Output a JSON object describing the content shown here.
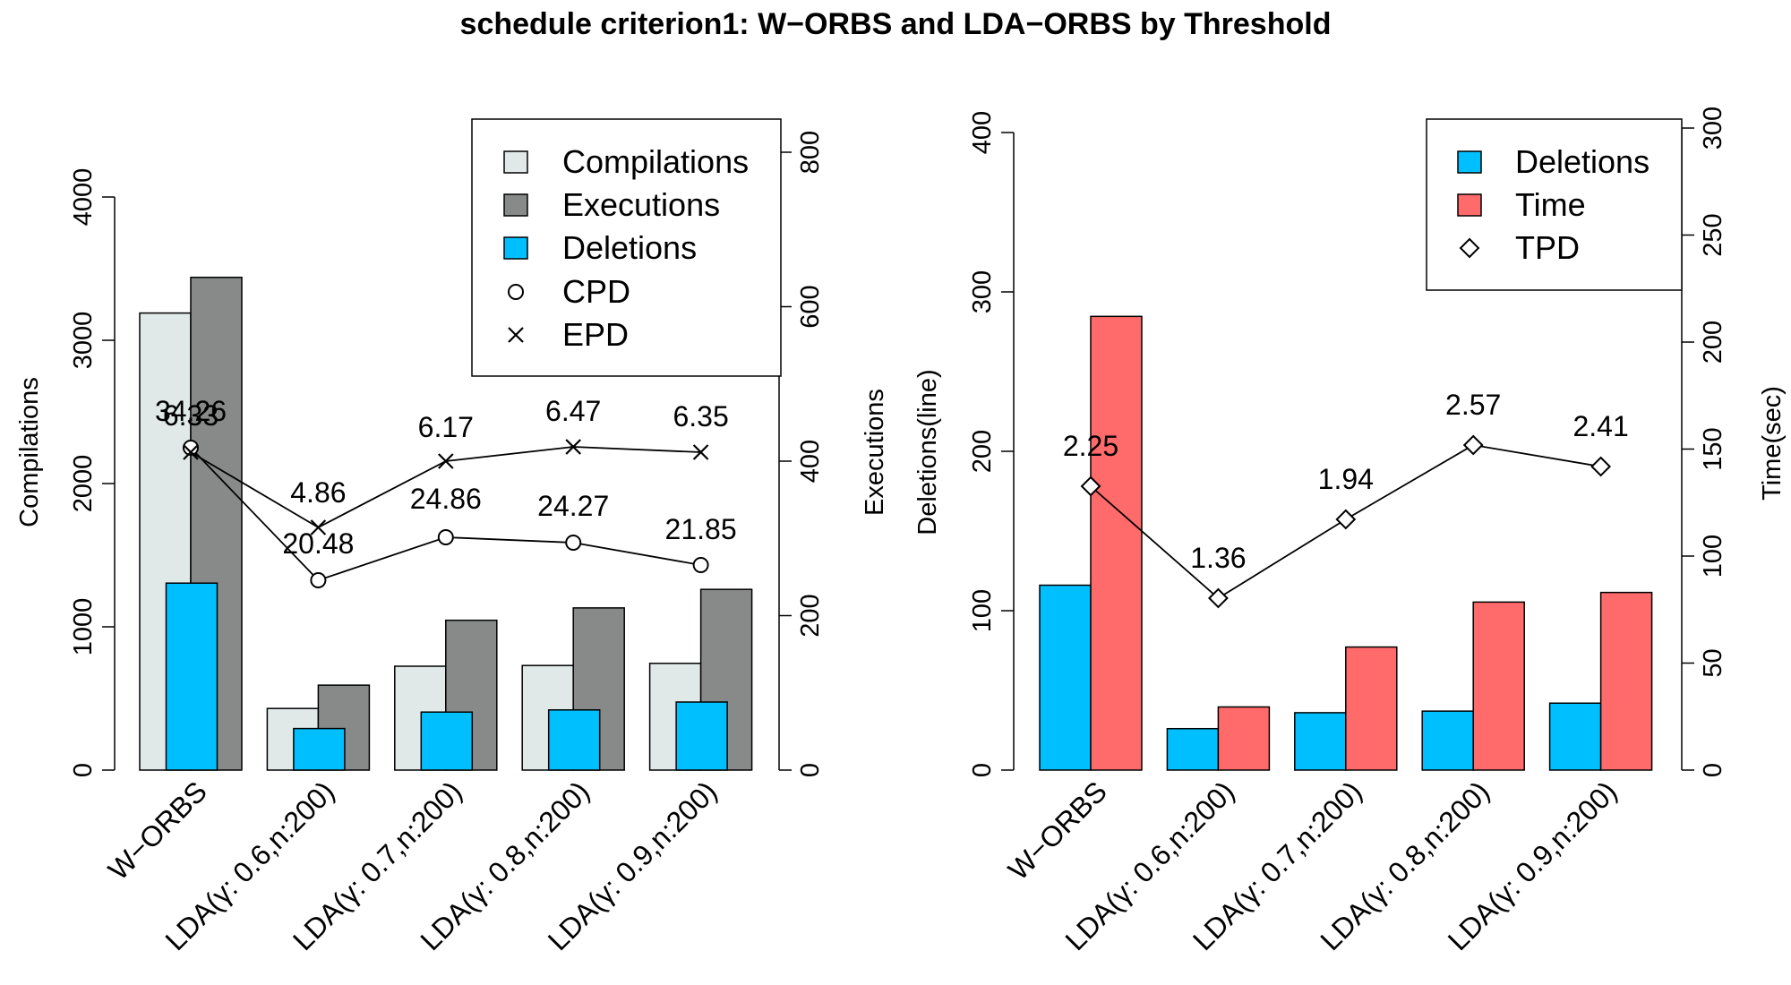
{
  "chart_title": "schedule criterion1: W−ORBS and LDA−ORBS by Threshold",
  "chart_data": [
    {
      "type": "bar",
      "categories": [
        "W−ORBS",
        "LDA(γ: 0.6,n:200)",
        "LDA(γ: 0.7,n:200)",
        "LDA(γ: 0.8,n:200)",
        "LDA(γ: 0.9,n:200)"
      ],
      "ylabel": "Compilations",
      "ylim": [
        0,
        4000
      ],
      "yticks": [
        "0",
        "1000",
        "2000",
        "3000",
        "4000"
      ],
      "y2label": "Executions",
      "y2lim": [
        0,
        800
      ],
      "y2ticks": [
        "0",
        "200",
        "400",
        "600",
        "800"
      ],
      "series": [
        {
          "name": "Compilations",
          "axis": "left",
          "color": "#e0e9e8",
          "values": [
            3190,
            430,
            725,
            730,
            745
          ]
        },
        {
          "name": "Executions",
          "axis": "right",
          "color": "#878a89",
          "values": [
            638,
            110,
            194,
            210,
            234
          ]
        },
        {
          "name": "Deletions",
          "axis": "left",
          "color": "#00bfff",
          "values": [
            1305,
            290,
            405,
            420,
            475
          ]
        }
      ],
      "point_series": [
        {
          "name": "CPD",
          "marker": "circle",
          "values": [
            34.26,
            20.48,
            24.86,
            24.27,
            21.85
          ],
          "labels": [
            "34.26",
            "20.48",
            "24.86",
            "24.27",
            "21.85"
          ]
        },
        {
          "name": "EPD",
          "marker": "cross",
          "values": [
            6.33,
            4.86,
            6.17,
            6.47,
            6.35
          ],
          "labels": [
            "6.33",
            "4.86",
            "6.17",
            "6.47",
            "6.35"
          ]
        }
      ],
      "legend": [
        "Compilations",
        "Executions",
        "Deletions",
        "CPD",
        "EPD"
      ],
      "legend_position": "top-right",
      "grid": false
    },
    {
      "type": "bar",
      "categories": [
        "W−ORBS",
        "LDA(γ: 0.6,n:200)",
        "LDA(γ: 0.7,n:200)",
        "LDA(γ: 0.8,n:200)",
        "LDA(γ: 0.9,n:200)"
      ],
      "ylabel": "Deletions(line)",
      "ylim": [
        0,
        400
      ],
      "yticks": [
        "0",
        "100",
        "200",
        "300",
        "400"
      ],
      "y2label": "Time(sec)",
      "y2lim": [
        0,
        300
      ],
      "y2ticks": [
        "0",
        "50",
        "100",
        "150",
        "200",
        "250",
        "300"
      ],
      "series": [
        {
          "name": "Deletions",
          "axis": "left",
          "color": "#00bfff",
          "values": [
            116,
            26,
            36,
            37,
            42
          ]
        },
        {
          "name": "Time",
          "axis": "right",
          "color": "#ff6a6a",
          "values": [
            212,
            29.5,
            57.5,
            78.5,
            83
          ]
        }
      ],
      "point_series": [
        {
          "name": "TPD",
          "marker": "diamond",
          "values": [
            2.25,
            1.36,
            1.94,
            2.57,
            2.41
          ],
          "labels": [
            "2.25",
            "1.36",
            "1.94",
            "2.57",
            "2.41"
          ]
        }
      ],
      "legend": [
        "Deletions",
        "Time",
        "TPD"
      ],
      "legend_position": "top-right",
      "grid": false
    }
  ]
}
